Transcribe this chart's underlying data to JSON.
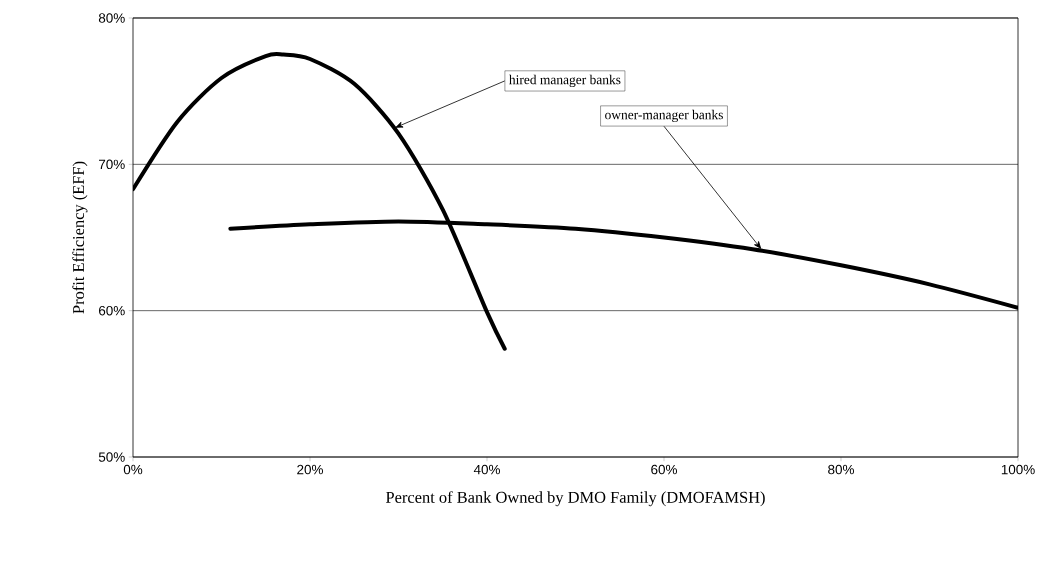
{
  "chart_data": {
    "type": "line",
    "xlabel": "Percent of Bank Owned by DMO Family (DMOFAMSH)",
    "ylabel": "Profit Efficiency (EFF)",
    "series": [
      {
        "x": [
          0,
          5,
          10,
          15,
          17,
          20,
          25,
          30,
          35,
          40,
          42
        ],
        "values": [
          68.3,
          72.9,
          75.9,
          77.4,
          77.5,
          77.2,
          75.5,
          72.1,
          66.9,
          59.9,
          57.4
        ],
        "color": "#000000"
      },
      {
        "x": [
          11,
          20,
          30,
          40,
          50,
          60,
          70,
          80,
          90,
          100
        ],
        "values": [
          65.6,
          65.9,
          66.1,
          65.9,
          65.6,
          65.0,
          64.2,
          63.1,
          61.8,
          60.2
        ],
        "color": "#000000"
      }
    ],
    "xlim": [
      0,
      100
    ],
    "ylim": [
      50,
      80
    ],
    "xticks": [
      {
        "value": 0,
        "label": "0%"
      },
      {
        "value": 20,
        "label": "20%"
      },
      {
        "value": 40,
        "label": "40%"
      },
      {
        "value": 60,
        "label": "60%"
      },
      {
        "value": 80,
        "label": "80%"
      },
      {
        "value": 100,
        "label": "100%"
      }
    ],
    "yticks": [
      {
        "value": 50,
        "label": "50%"
      },
      {
        "value": 60,
        "label": "60%"
      },
      {
        "value": 70,
        "label": "70%"
      },
      {
        "value": 80,
        "label": "80%"
      }
    ],
    "grid": "y",
    "line_style": "solid",
    "marker": "none",
    "annotations": [
      {
        "text": "hired manager banks",
        "x": 29.6,
        "y": 72.5
      },
      {
        "text": "owner-manager banks",
        "x": 71,
        "y": 64.2
      }
    ]
  }
}
